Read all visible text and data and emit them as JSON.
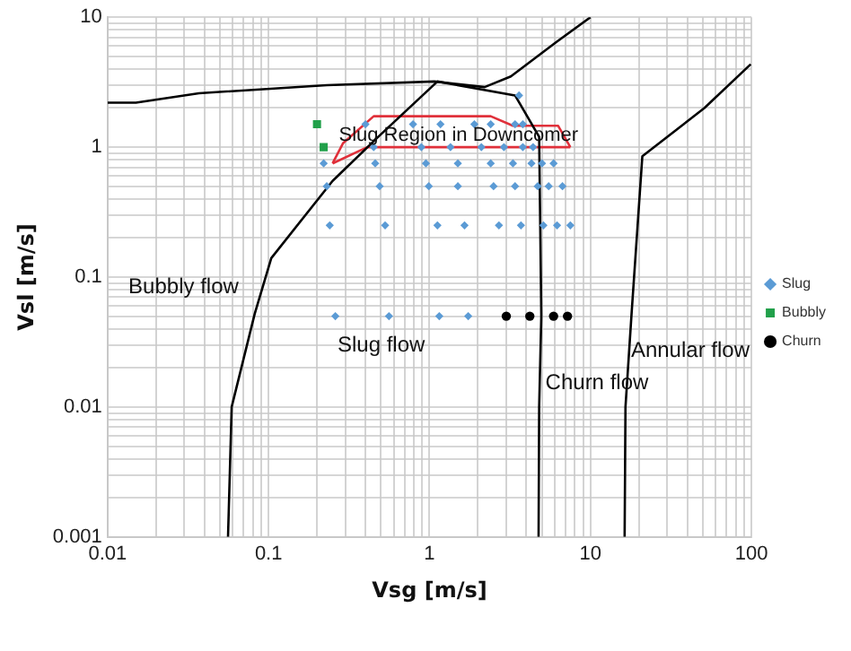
{
  "chart_data": {
    "type": "scatter",
    "xlabel": "Vsg [m/s]",
    "ylabel": "Vsl [m/s]",
    "log": "xy",
    "grid": true,
    "legend": "right",
    "xlim": [
      0.01,
      100
    ],
    "ylim": [
      0.001,
      10
    ],
    "xticks": [
      0.01,
      {
        "value": 0.02,
        "label": null
      },
      {
        "value": 0.03,
        "label": null
      },
      {
        "value": 0.04,
        "label": null
      },
      {
        "value": 0.05,
        "label": null
      },
      {
        "value": 0.06,
        "label": null
      },
      {
        "value": 0.07,
        "label": null
      },
      {
        "value": 0.08,
        "label": null
      },
      {
        "value": 0.09,
        "label": null
      },
      0.1,
      {
        "value": 0.2,
        "label": null
      },
      {
        "value": 0.3,
        "label": null
      },
      {
        "value": 0.4,
        "label": null
      },
      {
        "value": 0.5,
        "label": null
      },
      {
        "value": 0.6,
        "label": null
      },
      {
        "value": 0.7,
        "label": null
      },
      {
        "value": 0.8,
        "label": null
      },
      {
        "value": 0.9,
        "label": null
      },
      1,
      {
        "value": 2,
        "label": null
      },
      {
        "value": 3,
        "label": null
      },
      {
        "value": 4,
        "label": null
      },
      {
        "value": 5,
        "label": null
      },
      {
        "value": 6,
        "label": null
      },
      {
        "value": 7,
        "label": null
      },
      {
        "value": 8,
        "label": null
      },
      {
        "value": 9,
        "label": null
      },
      10,
      {
        "value": 20,
        "label": null
      },
      {
        "value": 30,
        "label": null
      },
      {
        "value": 40,
        "label": null
      },
      {
        "value": 50,
        "label": null
      },
      {
        "value": 60,
        "label": null
      },
      {
        "value": 70,
        "label": null
      },
      {
        "value": 80,
        "label": null
      },
      {
        "value": 90,
        "label": null
      },
      100
    ],
    "yticks": [
      0.001,
      {
        "value": 0.002,
        "label": null
      },
      {
        "value": 0.003,
        "label": null
      },
      {
        "value": 0.004,
        "label": null
      },
      {
        "value": 0.005,
        "label": null
      },
      {
        "value": 0.006,
        "label": null
      },
      {
        "value": 0.007,
        "label": null
      },
      {
        "value": 0.008,
        "label": null
      },
      {
        "value": 0.009,
        "label": null
      },
      0.01,
      {
        "value": 0.02,
        "label": null
      },
      {
        "value": 0.03,
        "label": null
      },
      {
        "value": 0.04,
        "label": null
      },
      {
        "value": 0.05,
        "label": null
      },
      {
        "value": 0.06,
        "label": null
      },
      {
        "value": 0.07,
        "label": null
      },
      {
        "value": 0.08,
        "label": null
      },
      {
        "value": 0.09,
        "label": null
      },
      0.1,
      {
        "value": 0.2,
        "label": null
      },
      {
        "value": 0.3,
        "label": null
      },
      {
        "value": 0.4,
        "label": null
      },
      {
        "value": 0.5,
        "label": null
      },
      {
        "value": 0.6,
        "label": null
      },
      {
        "value": 0.7,
        "label": null
      },
      {
        "value": 0.8,
        "label": null
      },
      {
        "value": 0.9,
        "label": null
      },
      1,
      {
        "value": 2,
        "label": null
      },
      {
        "value": 3,
        "label": null
      },
      {
        "value": 4,
        "label": null
      },
      {
        "value": 5,
        "label": null
      },
      {
        "value": 6,
        "label": null
      },
      {
        "value": 7,
        "label": null
      },
      {
        "value": 8,
        "label": null
      },
      {
        "value": 9,
        "label": null
      },
      10
    ],
    "series": [
      {
        "type": "line",
        "color": "#000000",
        "marker": "none",
        "x": [
          0.01,
          0.015,
          0.037,
          0.23,
          1.07,
          2.2,
          3.2,
          6.1,
          10
        ],
        "values": [
          2.2,
          2.2,
          2.6,
          3.0,
          3.2,
          2.9,
          3.5,
          6.4,
          10
        ]
      },
      {
        "type": "line",
        "color": "#000000",
        "marker": "none",
        "x": [
          0.056,
          0.059,
          0.082,
          0.104,
          0.25,
          0.48,
          1.12,
          3.4,
          4.8,
          4.95,
          4.8,
          4.76
        ],
        "values": [
          0.001,
          0.01,
          0.052,
          0.14,
          0.55,
          1.2,
          3.2,
          2.5,
          1.2,
          0.05,
          0.01,
          0.001
        ]
      },
      {
        "type": "line",
        "color": "#000000",
        "marker": "none",
        "x": [
          99,
          51,
          21,
          18,
          16.5,
          16.3
        ],
        "values": [
          4.35,
          2.0,
          0.85,
          0.052,
          0.01,
          0.001
        ]
      },
      {
        "type": "line",
        "color": "#e0303a",
        "marker": "none",
        "x": [
          0.25,
          0.29,
          0.45,
          2.4,
          3.3,
          6.3,
          7.5
        ],
        "values": [
          0.75,
          1.07,
          1.73,
          1.73,
          1.46,
          1.46,
          1.0
        ]
      },
      {
        "type": "line",
        "color": "#e0303a",
        "marker": "none",
        "x": [
          0.25,
          0.41,
          7.5
        ],
        "values": [
          0.75,
          1.0,
          1.0
        ]
      },
      {
        "type": "scatter",
        "name": "Slug",
        "color": "#5b9bd5",
        "marker": "diamond",
        "x": [
          0.26,
          0.56,
          1.15,
          1.74,
          0.24,
          0.53,
          1.12,
          1.65,
          2.7,
          3.7,
          5.1,
          6.2,
          7.5,
          0.23,
          0.49,
          0.99,
          1.5,
          2.5,
          3.4,
          4.7,
          5.5,
          6.7,
          0.22,
          0.46,
          0.95,
          1.5,
          2.4,
          3.3,
          4.3,
          5.0,
          5.9,
          0.45,
          0.89,
          1.35,
          2.1,
          2.9,
          3.8,
          4.4,
          0.4,
          0.79,
          1.17,
          1.9,
          2.4,
          3.4,
          3.8,
          3.6
        ],
        "values": [
          0.05,
          0.05,
          0.05,
          0.05,
          0.25,
          0.25,
          0.25,
          0.25,
          0.25,
          0.25,
          0.25,
          0.25,
          0.25,
          0.5,
          0.5,
          0.5,
          0.5,
          0.5,
          0.5,
          0.5,
          0.5,
          0.5,
          0.75,
          0.75,
          0.75,
          0.75,
          0.75,
          0.75,
          0.75,
          0.75,
          0.75,
          1,
          1,
          1,
          1,
          1,
          1,
          1,
          1.5,
          1.5,
          1.5,
          1.5,
          1.5,
          1.5,
          1.5,
          2.5
        ]
      },
      {
        "type": "scatter",
        "name": "Bubbly",
        "color": "#21a04a",
        "marker": "square",
        "x": [
          0.2,
          0.22
        ],
        "values": [
          1.5,
          1.0
        ]
      },
      {
        "type": "scatter",
        "name": "Churn",
        "color": "#000000",
        "marker": "circle",
        "x": [
          3.0,
          4.2,
          5.9,
          7.2
        ],
        "values": [
          0.05,
          0.05,
          0.05,
          0.05
        ]
      }
    ],
    "annotations": [
      "Slug Region in Downcomer",
      "Bubbly flow",
      "Slug flow",
      "Churn flow",
      "Annular flow"
    ]
  }
}
